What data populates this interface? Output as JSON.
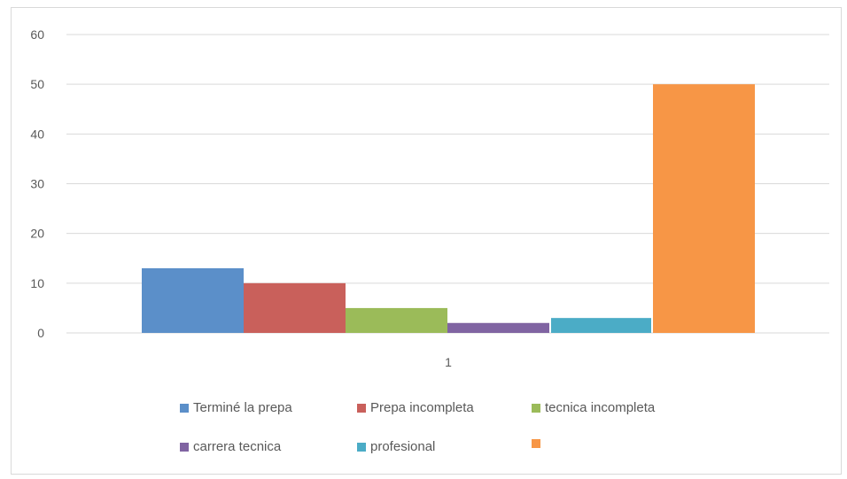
{
  "chart_data": {
    "type": "bar",
    "title": "",
    "xlabel": "",
    "ylabel": "",
    "categories": [
      "1"
    ],
    "ylim": [
      0,
      60
    ],
    "yticks": [
      0,
      10,
      20,
      30,
      40,
      50,
      60
    ],
    "grid": true,
    "legend_position": "bottom",
    "series": [
      {
        "name": "Terminé la prepa",
        "values": [
          13
        ],
        "color": "#5b8fc9"
      },
      {
        "name": "Prepa incompleta",
        "values": [
          10
        ],
        "color": "#c9605b"
      },
      {
        "name": "tecnica incompleta",
        "values": [
          5
        ],
        "color": "#9bbb59"
      },
      {
        "name": "carrera tecnica",
        "values": [
          2
        ],
        "color": "#8064a2"
      },
      {
        "name": "profesional",
        "values": [
          3
        ],
        "color": "#4bacc6"
      },
      {
        "name": "",
        "values": [
          50
        ],
        "color": "#f79646"
      }
    ]
  }
}
